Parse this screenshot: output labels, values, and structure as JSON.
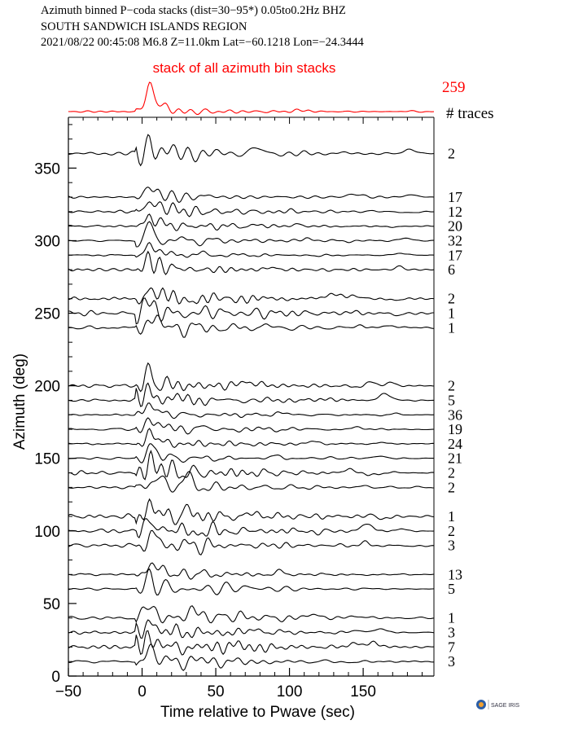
{
  "header": {
    "line1": "Azimuth binned P−coda stacks (dist=30−95*)  0.05to0.2Hz  BHZ",
    "line2": "SOUTH SANDWICH ISLANDS REGION",
    "line3": "2021/08/22  00:45:08  M6.8  Z=11.0km Lat=−60.1218 Lon=−24.3444"
  },
  "logo_text": "SAGE IRIS",
  "colors": {
    "stack": "#ff0000",
    "trace": "#000000",
    "axis": "#000000"
  },
  "chart_data": {
    "type": "line",
    "title": "stack of all azimuth bin stacks",
    "xlabel": "Time relative to Pwave (sec)",
    "ylabel": "Azimuth (deg)",
    "xlim": [
      -50,
      198
    ],
    "ylim": [
      0,
      385
    ],
    "xticks": [
      -50,
      0,
      50,
      100,
      150
    ],
    "yticks": [
      0,
      50,
      100,
      150,
      200,
      250,
      300,
      350
    ],
    "trace_count_header": "# traces",
    "total_traces": "259",
    "traces": [
      {
        "azimuth": 360,
        "count": "2"
      },
      {
        "azimuth": 330,
        "count": "17"
      },
      {
        "azimuth": 320,
        "count": "12"
      },
      {
        "azimuth": 310,
        "count": "20"
      },
      {
        "azimuth": 300,
        "count": "32"
      },
      {
        "azimuth": 290,
        "count": "17"
      },
      {
        "azimuth": 280,
        "count": "6"
      },
      {
        "azimuth": 260,
        "count": "2"
      },
      {
        "azimuth": 250,
        "count": "1"
      },
      {
        "azimuth": 240,
        "count": "1"
      },
      {
        "azimuth": 200,
        "count": "2"
      },
      {
        "azimuth": 190,
        "count": "5"
      },
      {
        "azimuth": 180,
        "count": "36"
      },
      {
        "azimuth": 170,
        "count": "19"
      },
      {
        "azimuth": 160,
        "count": "24"
      },
      {
        "azimuth": 150,
        "count": "21"
      },
      {
        "azimuth": 140,
        "count": "2"
      },
      {
        "azimuth": 130,
        "count": "2"
      },
      {
        "azimuth": 110,
        "count": "1"
      },
      {
        "azimuth": 100,
        "count": "2"
      },
      {
        "azimuth": 90,
        "count": "3"
      },
      {
        "azimuth": 70,
        "count": "13"
      },
      {
        "azimuth": 60,
        "count": "5"
      },
      {
        "azimuth": 40,
        "count": "1"
      },
      {
        "azimuth": 30,
        "count": "3"
      },
      {
        "azimuth": 20,
        "count": "7"
      },
      {
        "azimuth": 10,
        "count": "3"
      }
    ]
  }
}
